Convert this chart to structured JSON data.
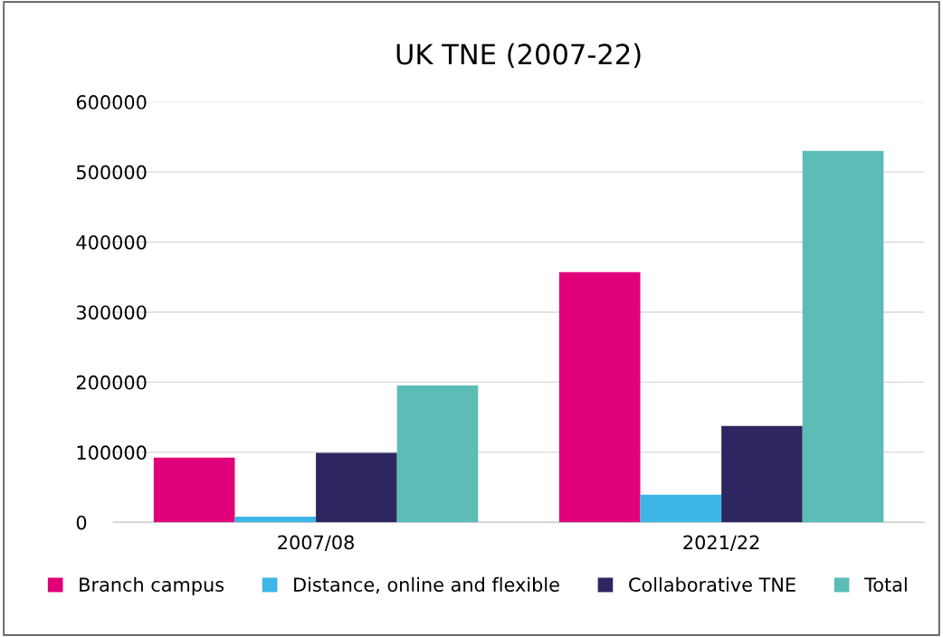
{
  "chart_data": {
    "type": "bar",
    "title": "UK TNE (2007-22)",
    "categories": [
      "2007/08",
      "2021/22"
    ],
    "series": [
      {
        "name": "Branch campus",
        "color": "#e0007a",
        "values": [
          92500,
          357000
        ]
      },
      {
        "name": "Distance, online and flexible",
        "color": "#3db5e6",
        "values": [
          8000,
          39500
        ]
      },
      {
        "name": "Collaborative TNE",
        "color": "#2e2660",
        "values": [
          99000,
          137500
        ]
      },
      {
        "name": "Total",
        "color": "#5bbdb6",
        "values": [
          195500,
          530000
        ]
      }
    ],
    "ylim": [
      0,
      600000
    ],
    "yticks": [
      0,
      100000,
      200000,
      300000,
      400000,
      500000,
      600000
    ],
    "grid": "y",
    "legend": "bottom"
  }
}
